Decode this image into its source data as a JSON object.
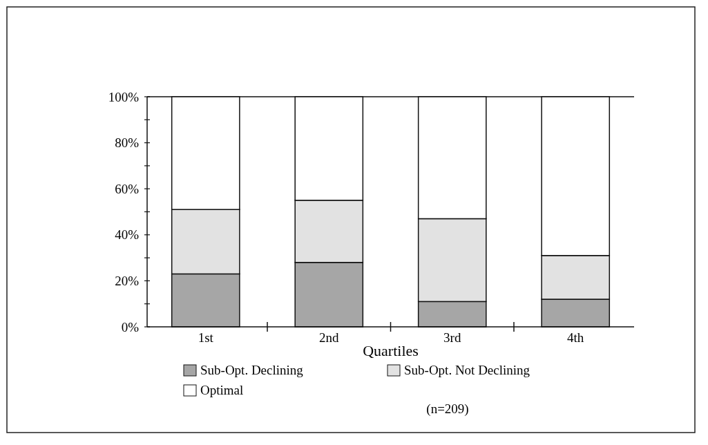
{
  "chart_data": {
    "type": "bar",
    "stacked": true,
    "xlabel": "Quartiles",
    "categories": [
      "1st",
      "2nd",
      "3rd",
      "4th"
    ],
    "series": [
      {
        "name": "Sub-Opt. Declining",
        "color": "#a6a6a6",
        "values": [
          23,
          28,
          11,
          12
        ]
      },
      {
        "name": "Sub-Opt. Not Declining",
        "color": "#e2e2e2",
        "values": [
          28,
          27,
          36,
          19
        ]
      },
      {
        "name": "Optimal",
        "color": "#ffffff",
        "values": [
          49,
          45,
          53,
          69
        ]
      }
    ],
    "ylim": [
      0,
      100
    ],
    "yticks": [
      {
        "value": 0,
        "label": "0%"
      },
      {
        "value": 10,
        "label": null
      },
      {
        "value": 20,
        "label": "20%"
      },
      {
        "value": 30,
        "label": null
      },
      {
        "value": 40,
        "label": "40%"
      },
      {
        "value": 50,
        "label": null
      },
      {
        "value": 60,
        "label": "60%"
      },
      {
        "value": 70,
        "label": null
      },
      {
        "value": 80,
        "label": "80%"
      },
      {
        "value": 90,
        "label": null
      },
      {
        "value": 100,
        "label": "100%"
      }
    ],
    "legend": "bottom",
    "grid": false,
    "annotations": [
      "(n=209)"
    ]
  }
}
